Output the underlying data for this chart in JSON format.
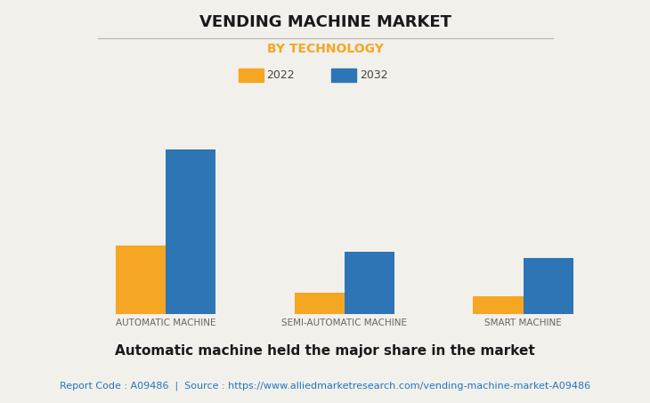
{
  "title": "VENDING MACHINE MARKET",
  "subtitle": "BY TECHNOLOGY",
  "subtitle_color": "#F5A623",
  "categories": [
    "AUTOMATIC MACHINE",
    "SEMI-AUTOMATIC MACHINE",
    "SMART MACHINE"
  ],
  "series": [
    {
      "label": "2022",
      "values": [
        42,
        13,
        11
      ],
      "color": "#F5A623"
    },
    {
      "label": "2032",
      "values": [
        100,
        38,
        34
      ],
      "color": "#2E75B6"
    }
  ],
  "ylim": [
    0,
    110
  ],
  "bar_width": 0.28,
  "background_color": "#F2F0EB",
  "grid_color": "#CCCCCC",
  "footnote": "Automatic machine held the major share in the market",
  "source_text": "Report Code : A09486  |  Source : https://www.alliedmarketresearch.com/vending-machine-market-A09486",
  "source_color": "#2175BD",
  "title_fontsize": 13,
  "subtitle_fontsize": 10,
  "tick_label_fontsize": 7.5,
  "legend_fontsize": 9,
  "footnote_fontsize": 11,
  "source_fontsize": 8
}
